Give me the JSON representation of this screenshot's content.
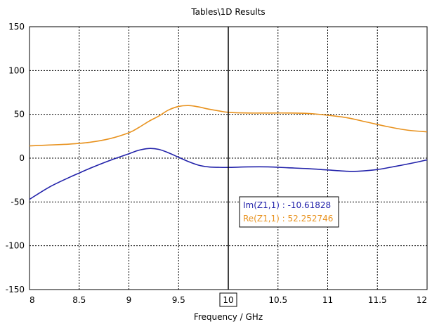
{
  "chart_data": {
    "type": "line",
    "title": "Tables\\1D Results",
    "xlabel": "Frequency / GHz",
    "ylabel": "",
    "xlim": [
      8,
      12
    ],
    "ylim": [
      -150,
      150
    ],
    "xticks": [
      8,
      8.5,
      9,
      9.5,
      10,
      10.5,
      11,
      11.5,
      12
    ],
    "xtick_labels": [
      "8",
      "8.5",
      "9",
      "9.5",
      "10",
      "10.5",
      "11",
      "11.5",
      "12"
    ],
    "yticks": [
      -150,
      -100,
      -50,
      0,
      50,
      100,
      150
    ],
    "ytick_labels": [
      "-150",
      "-100",
      "-50",
      "0",
      "50",
      "100",
      "150"
    ],
    "grid": true,
    "marker": {
      "x": 10,
      "label": "10"
    },
    "series": [
      {
        "name": "Im(Z1,1)",
        "color": "#2222aa",
        "x": [
          8.0,
          8.2,
          8.4,
          8.5,
          8.6,
          8.8,
          9.0,
          9.1,
          9.2,
          9.3,
          9.4,
          9.5,
          9.6,
          9.7,
          9.8,
          9.9,
          10.0,
          10.2,
          10.4,
          10.6,
          10.8,
          11.0,
          11.2,
          11.3,
          11.5,
          11.7,
          11.9,
          12.0
        ],
        "y": [
          -47,
          -33,
          -22,
          -17,
          -12,
          -3,
          5,
          9,
          11,
          10,
          6,
          1,
          -4,
          -8,
          -10,
          -10.5,
          -10.6,
          -10,
          -10,
          -11,
          -12,
          -13.5,
          -15,
          -15,
          -13,
          -9,
          -4.5,
          -2
        ]
      },
      {
        "name": "Re(Z1,1)",
        "color": "#e8921e",
        "x": [
          8.0,
          8.2,
          8.4,
          8.6,
          8.8,
          9.0,
          9.1,
          9.2,
          9.3,
          9.4,
          9.5,
          9.6,
          9.7,
          9.8,
          9.9,
          10.0,
          10.2,
          10.4,
          10.6,
          10.8,
          11.0,
          11.2,
          11.4,
          11.6,
          11.8,
          12.0
        ],
        "y": [
          14,
          15,
          16,
          18,
          22,
          29,
          35,
          42,
          48,
          55,
          59,
          60,
          58.5,
          56,
          54,
          52.3,
          51.5,
          51.5,
          51.5,
          51,
          49,
          46,
          41,
          36,
          32,
          30
        ]
      }
    ],
    "marker_readout": [
      {
        "text": "Im(Z1,1) : -10.61828",
        "color": "#2222aa"
      },
      {
        "text": "Re(Z1,1) : 52.252746",
        "color": "#e8921e"
      }
    ]
  }
}
